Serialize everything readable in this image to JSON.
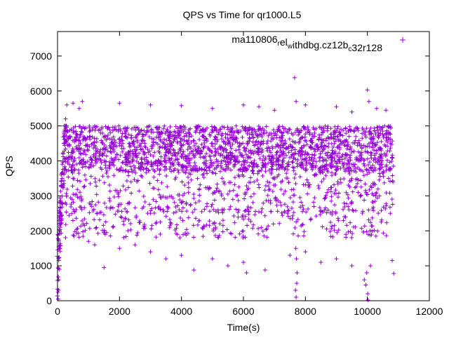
{
  "chart_data": {
    "type": "scatter",
    "title": "QPS vs Time for qr1000.L5",
    "xlabel": "Time(s)",
    "ylabel": "QPS",
    "xlim": [
      0,
      12000
    ],
    "ylim": [
      0,
      7700
    ],
    "xticks": [
      0,
      2000,
      4000,
      6000,
      8000,
      10000,
      12000
    ],
    "yticks": [
      0,
      1000,
      2000,
      3000,
      4000,
      5000,
      6000,
      7000
    ],
    "grid": false,
    "legend_position": "top-right",
    "series": [
      {
        "legend_parts": [
          {
            "text": "ma110806",
            "sub": false
          },
          {
            "text": "r",
            "sub": true
          },
          {
            "text": "el",
            "sub": false
          },
          {
            "text": "w",
            "sub": true
          },
          {
            "text": "ithdbg.cz12b",
            "sub": false
          },
          {
            "text": "c",
            "sub": true
          },
          {
            "text": "32r128",
            "sub": false
          }
        ],
        "color": "#9400d3",
        "marker": "plus",
        "x_range": [
          0,
          10850
        ],
        "typical_band": [
          2500,
          5000
        ],
        "points": [
          [
            20,
            50
          ],
          [
            30,
            300
          ],
          [
            40,
            600
          ],
          [
            60,
            900
          ],
          [
            80,
            1500
          ],
          [
            100,
            2200
          ],
          [
            120,
            2800
          ],
          [
            150,
            3500
          ],
          [
            180,
            4200
          ],
          [
            220,
            4700
          ],
          [
            260,
            5200
          ],
          [
            300,
            5600
          ],
          [
            500,
            5650
          ],
          [
            700,
            5500
          ],
          [
            800,
            5700
          ],
          [
            1500,
            950
          ],
          [
            1000,
            1700
          ],
          [
            1200,
            1600
          ],
          [
            2000,
            1500
          ],
          [
            2500,
            1600
          ],
          [
            3000,
            1400
          ],
          [
            3500,
            1200
          ],
          [
            4000,
            1300
          ],
          [
            4400,
            880
          ],
          [
            5000,
            1200
          ],
          [
            5500,
            1000
          ],
          [
            6000,
            1100
          ],
          [
            6100,
            800
          ],
          [
            6700,
            880
          ],
          [
            7500,
            1300
          ],
          [
            7650,
            6380
          ],
          [
            7700,
            5700
          ],
          [
            7680,
            300
          ],
          [
            7700,
            100
          ],
          [
            7720,
            500
          ],
          [
            7710,
            1200
          ],
          [
            7690,
            1500
          ],
          [
            7730,
            800
          ],
          [
            8000,
            1400
          ],
          [
            8500,
            1100
          ],
          [
            9000,
            1200
          ],
          [
            9500,
            1000
          ],
          [
            9900,
            600
          ],
          [
            9950,
            450
          ],
          [
            10000,
            6030
          ],
          [
            10050,
            5700
          ],
          [
            10010,
            200
          ],
          [
            10020,
            20
          ],
          [
            9980,
            800
          ],
          [
            10100,
            1000
          ],
          [
            10800,
            1150
          ],
          [
            10850,
            780
          ],
          [
            10600,
            5450
          ],
          [
            2000,
            5650
          ],
          [
            3000,
            5600
          ],
          [
            4000,
            5580
          ],
          [
            5000,
            5500
          ],
          [
            6000,
            5600
          ],
          [
            6500,
            5550
          ],
          [
            7000,
            5450
          ],
          [
            8000,
            5600
          ],
          [
            9000,
            5550
          ],
          [
            9500,
            5400
          ],
          [
            10300,
            5500
          ]
        ]
      }
    ]
  }
}
